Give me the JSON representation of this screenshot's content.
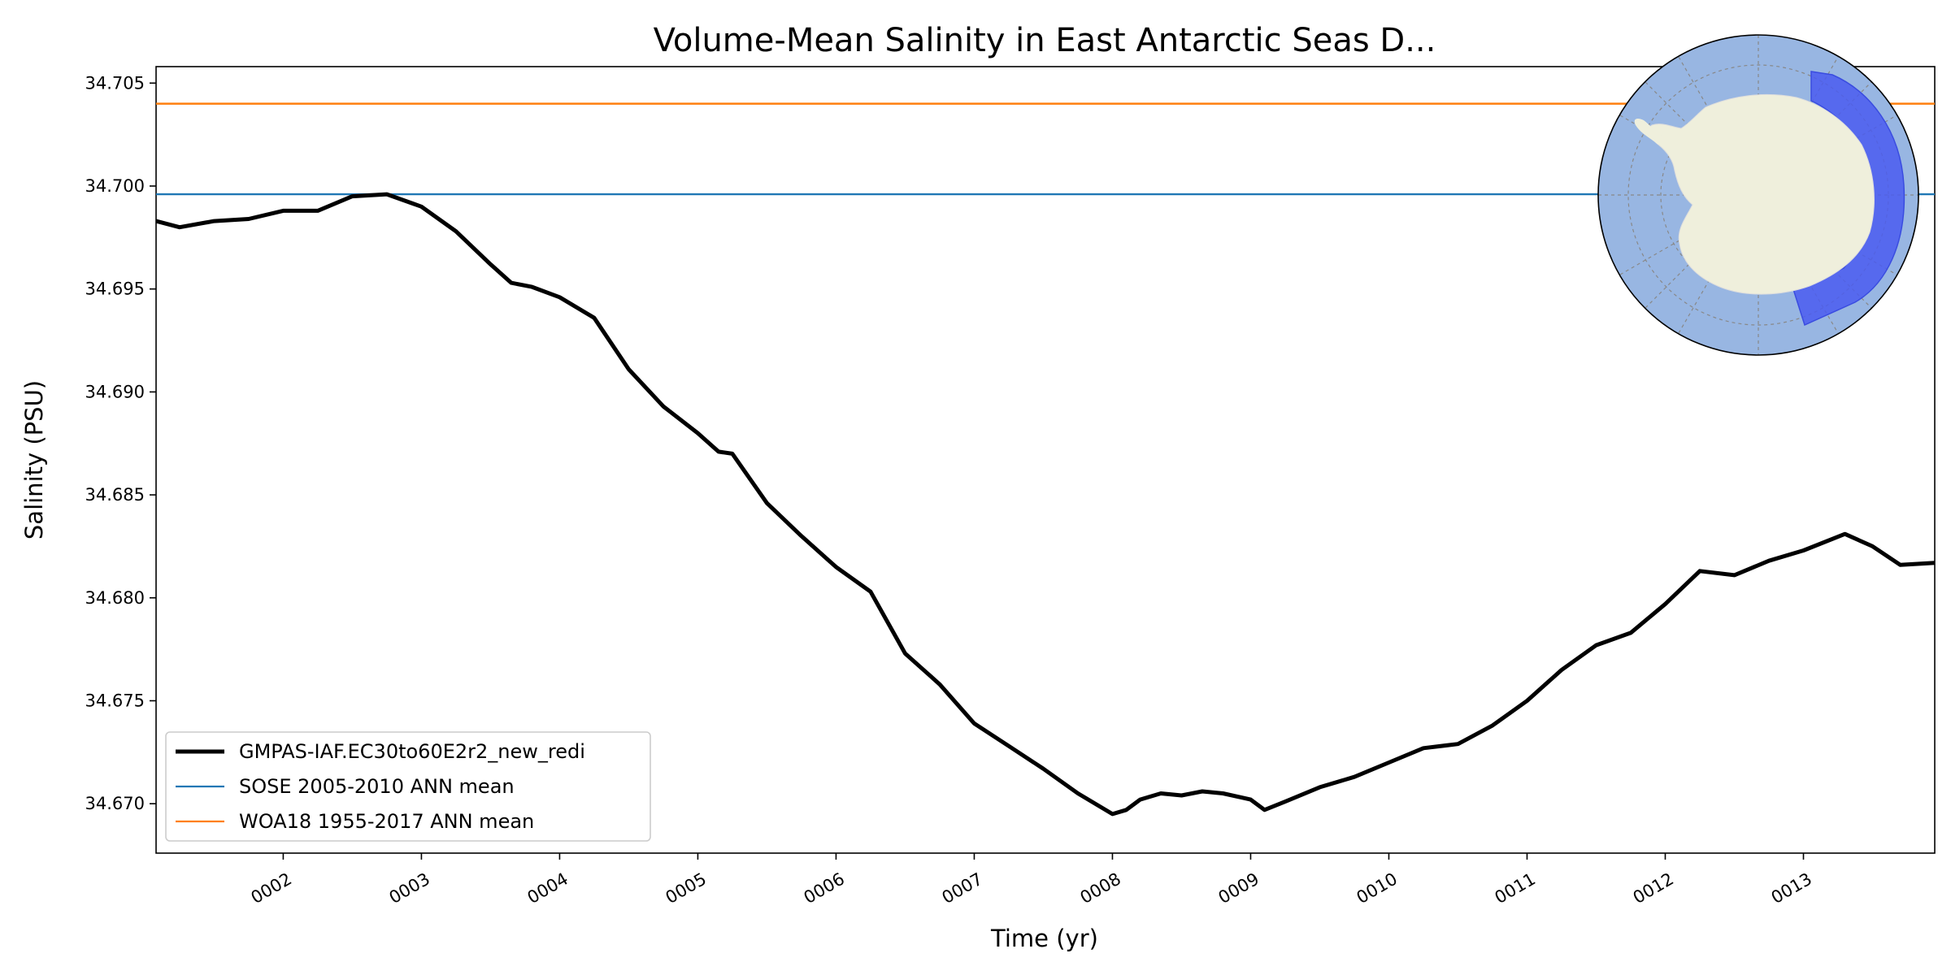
{
  "chart_data": {
    "type": "line",
    "title": "Volume-Mean Salinity in East Antarctic Seas D...",
    "xlabel": "Time (yr)",
    "ylabel": "Salinity (PSU)",
    "xlim": [
      1.08,
      13.95
    ],
    "ylim": [
      34.6676,
      34.7058
    ],
    "x_ticks": [
      2,
      3,
      4,
      5,
      6,
      7,
      8,
      9,
      10,
      11,
      12,
      13
    ],
    "x_tick_labels": [
      "0002",
      "0003",
      "0004",
      "0005",
      "0006",
      "0007",
      "0008",
      "0009",
      "0010",
      "0011",
      "0012",
      "0013"
    ],
    "y_ticks": [
      34.67,
      34.675,
      34.68,
      34.685,
      34.69,
      34.695,
      34.7,
      34.705
    ],
    "y_tick_labels": [
      "34.670",
      "34.675",
      "34.680",
      "34.685",
      "34.690",
      "34.695",
      "34.700",
      "34.705"
    ],
    "grid": false,
    "legend_position": "lower-left",
    "series": [
      {
        "name": "GMPAS-IAF.EC30to60E2r2_new_redi",
        "color": "#000000",
        "x": [
          1.08,
          1.25,
          1.5,
          1.75,
          2.0,
          2.25,
          2.5,
          2.75,
          3.0,
          3.25,
          3.5,
          3.65,
          3.8,
          4.0,
          4.25,
          4.5,
          4.75,
          5.0,
          5.15,
          5.25,
          5.5,
          5.75,
          6.0,
          6.25,
          6.5,
          6.75,
          7.0,
          7.25,
          7.5,
          7.75,
          8.0,
          8.1,
          8.2,
          8.35,
          8.5,
          8.65,
          8.8,
          9.0,
          9.1,
          9.25,
          9.5,
          9.75,
          10.0,
          10.25,
          10.5,
          10.75,
          11.0,
          11.25,
          11.5,
          11.75,
          12.0,
          12.25,
          12.5,
          12.75,
          13.0,
          13.3,
          13.5,
          13.7,
          13.95
        ],
        "y": [
          34.6983,
          34.698,
          34.6983,
          34.6984,
          34.6988,
          34.6988,
          34.6995,
          34.6996,
          34.699,
          34.6978,
          34.6962,
          34.6953,
          34.6951,
          34.6946,
          34.6936,
          34.6911,
          34.6893,
          34.688,
          34.6871,
          34.687,
          34.6846,
          34.683,
          34.6815,
          34.6803,
          34.6773,
          34.6758,
          34.6739,
          34.6728,
          34.6717,
          34.6705,
          34.6695,
          34.6697,
          34.6702,
          34.6705,
          34.6704,
          34.6706,
          34.6705,
          34.6702,
          34.6697,
          34.6701,
          34.6708,
          34.6713,
          34.672,
          34.6727,
          34.6729,
          34.6738,
          34.675,
          34.6765,
          34.6777,
          34.6783,
          34.6797,
          34.6813,
          34.6811,
          34.6818,
          34.6823,
          34.6831,
          34.6825,
          34.6816,
          34.6817
        ]
      },
      {
        "name": "SOSE 2005-2010 ANN mean",
        "color": "#1f77b4",
        "constant": 34.6996
      },
      {
        "name": "WOA18 1955-2017 ANN mean",
        "color": "#ff7f0e",
        "constant": 34.704
      }
    ],
    "inset_map": {
      "projection": "south-polar-stereographic",
      "ocean_color": "#98b6e2",
      "land_color": "#efefdc",
      "region_color": "#4a5cf0"
    }
  }
}
